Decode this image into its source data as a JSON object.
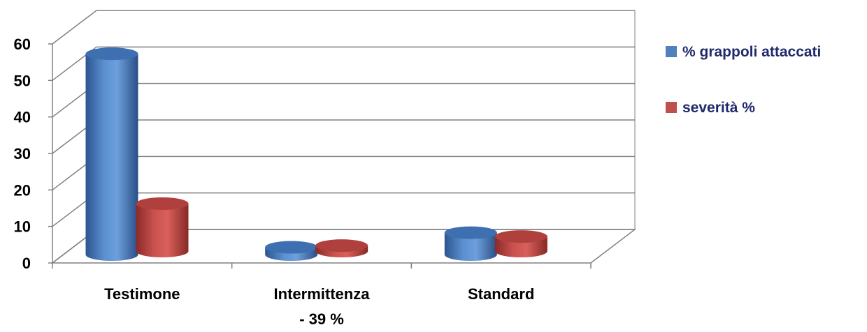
{
  "chart_data": {
    "type": "bar",
    "subtype": "3d-cylinder-clustered",
    "categories": [
      [
        "Testimone"
      ],
      [
        "Intermittenza",
        "- 39 %"
      ],
      [
        "Standard"
      ]
    ],
    "series": [
      {
        "name": "% grappoli attaccati",
        "values": [
          55,
          2,
          6
        ],
        "color": "#4f81bd"
      },
      {
        "name": "severità %",
        "values": [
          13,
          1.5,
          4
        ],
        "color": "#c0504d"
      }
    ],
    "y_ticks": [
      "0",
      "10",
      "20",
      "30",
      "40",
      "50",
      "60"
    ],
    "ylim": [
      0,
      60
    ],
    "grid": true,
    "legend_position": "right",
    "title": "",
    "xlabel": "",
    "ylabel": ""
  }
}
